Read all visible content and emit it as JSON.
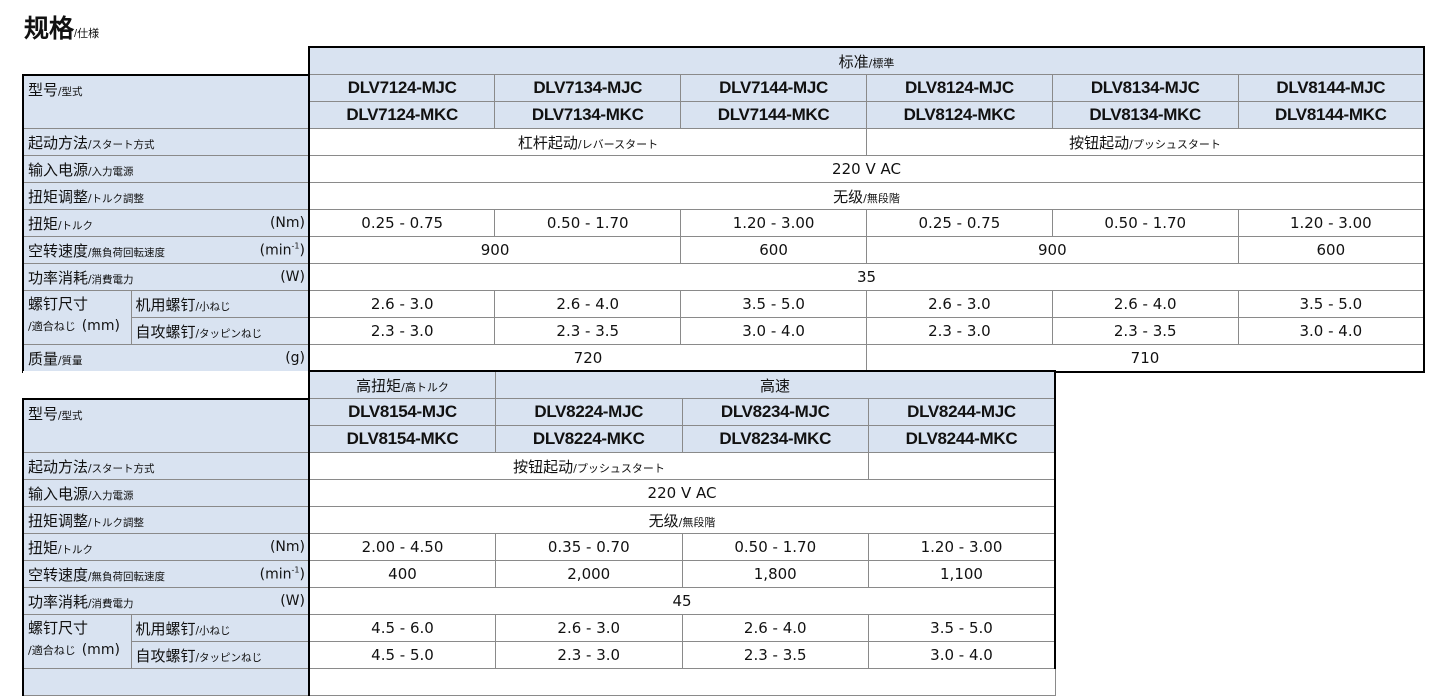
{
  "title": {
    "main": "规格",
    "sub": "/仕様"
  },
  "labels": {
    "model": {
      "cn": "型号",
      "jp": "/型式"
    },
    "start": {
      "cn": "起动方法",
      "jp": "/スタート方式"
    },
    "power": {
      "cn": "输入电源",
      "jp": "/入力電源"
    },
    "torque_adj": {
      "cn": "扭矩调整",
      "jp": "/トルク調整"
    },
    "torque": {
      "cn": "扭矩",
      "jp": "/トルク",
      "unit": "(Nm)"
    },
    "speed": {
      "cn": "空转速度",
      "jp": "/無負荷回転速度",
      "unit": "(min",
      "unit_sup": "-1",
      "unit_end": ")"
    },
    "consumption": {
      "cn": "功率消耗",
      "jp": "/消費電力",
      "unit": "(W)"
    },
    "screw": {
      "cn": "螺钉尺寸",
      "jp": "/適合ねじ",
      "unit": "(mm)"
    },
    "machine_screw": {
      "cn": "机用螺钉",
      "jp": "/小ねじ"
    },
    "tapping_screw": {
      "cn": "自攻螺钉",
      "jp": "/タッピンねじ"
    },
    "weight": {
      "cn": "质量",
      "jp": "/質量",
      "unit": "(g)"
    }
  },
  "table1": {
    "group": {
      "cn": "标准",
      "jp": "/標準"
    },
    "models_mjc": [
      "DLV7124-MJC",
      "DLV7134-MJC",
      "DLV7144-MJC",
      "DLV8124-MJC",
      "DLV8134-MJC",
      "DLV8144-MJC"
    ],
    "models_mkc": [
      "DLV7124-MKC",
      "DLV7134-MKC",
      "DLV7144-MKC",
      "DLV8124-MKC",
      "DLV8134-MKC",
      "DLV8144-MKC"
    ],
    "start": [
      {
        "cn": "杠杆起动",
        "jp": "/レバースタート"
      },
      {
        "cn": "按钮起动",
        "jp": "/プッシュスタート"
      }
    ],
    "power": "220 V AC",
    "torque_adj": {
      "cn": "无级",
      "jp": "/無段階"
    },
    "torque": [
      "0.25 - 0.75",
      "0.50 - 1.70",
      "1.20 - 3.00",
      "0.25 - 0.75",
      "0.50 - 1.70",
      "1.20 - 3.00"
    ],
    "speed": [
      "900",
      "600",
      "900",
      "600"
    ],
    "consumption": "35",
    "machine_screw": [
      "2.6 - 3.0",
      "2.6 - 4.0",
      "3.5 - 5.0",
      "2.6 - 3.0",
      "2.6 - 4.0",
      "3.5 - 5.0"
    ],
    "tapping_screw": [
      "2.3 - 3.0",
      "2.3 - 3.5",
      "3.0 - 4.0",
      "2.3 - 3.0",
      "2.3 - 3.5",
      "3.0 - 4.0"
    ],
    "weight": [
      "720",
      "710"
    ]
  },
  "table2": {
    "groups": [
      {
        "cn": "高扭矩",
        "jp": "/高トルク"
      },
      {
        "cn": "高速",
        "jp": ""
      }
    ],
    "models_mjc": [
      "DLV8154-MJC",
      "DLV8224-MJC",
      "DLV8234-MJC",
      "DLV8244-MJC"
    ],
    "models_mkc": [
      "DLV8154-MKC",
      "DLV8224-MKC",
      "DLV8234-MKC",
      "DLV8244-MKC"
    ],
    "start": {
      "cn": "按钮起动",
      "jp": "/プッシュスタート"
    },
    "power": "220 V AC",
    "torque_adj": {
      "cn": "无级",
      "jp": "/無段階"
    },
    "torque": [
      "2.00 - 4.50",
      "0.35 - 0.70",
      "0.50 - 1.70",
      "1.20 - 3.00"
    ],
    "speed": [
      "400",
      "2,000",
      "1,800",
      "1,100"
    ],
    "consumption": "45",
    "machine_screw": [
      "4.5 - 6.0",
      "2.6 - 3.0",
      "2.6 - 4.0",
      "3.5 - 5.0"
    ],
    "tapping_screw": [
      "4.5 - 5.0",
      "2.3 - 3.0",
      "2.3 - 3.5",
      "3.0 - 4.0"
    ]
  },
  "colors": {
    "header_bg": "#d9e3f1",
    "border": "#8a8a8a",
    "outline": "#000000"
  }
}
